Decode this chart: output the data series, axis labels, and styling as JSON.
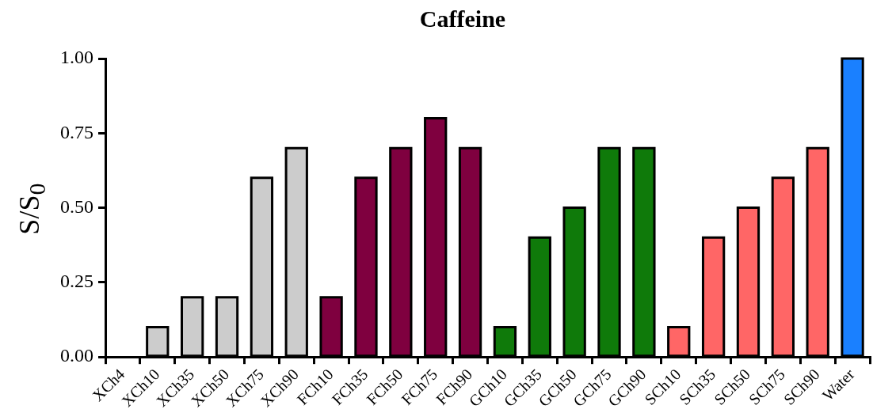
{
  "chart_data": {
    "type": "bar",
    "title": "Caffeine",
    "ylabel": "S/S$_{0}$",
    "categories": [
      "XCh4",
      "XCh10",
      "XCh35",
      "XCh50",
      "XCh75",
      "XCh90",
      "FCh10",
      "FCh35",
      "FCh50",
      "FCh75",
      "FCh90",
      "GCh10",
      "GCh35",
      "GCh50",
      "GCh75",
      "GCh90",
      "SCh10",
      "SCh35",
      "SCh50",
      "SCh75",
      "SCh90",
      "Water"
    ],
    "values": [
      0,
      0.1,
      0.2,
      0.2,
      0.6,
      0.7,
      0.2,
      0.6,
      0.7,
      0.8,
      0.7,
      0.1,
      0.4,
      0.5,
      0.7,
      0.7,
      0.1,
      0.4,
      0.5,
      0.6,
      0.7,
      1.0
    ],
    "colors": [
      "#cccccc",
      "#cccccc",
      "#cccccc",
      "#cccccc",
      "#cccccc",
      "#cccccc",
      "#7f003f",
      "#7f003f",
      "#7f003f",
      "#7f003f",
      "#7f003f",
      "#0f7a0a",
      "#0f7a0a",
      "#0f7a0a",
      "#0f7a0a",
      "#0f7a0a",
      "#ff6666",
      "#ff6666",
      "#ff6666",
      "#ff6666",
      "#ff6666",
      "#1a80ff"
    ],
    "ylim": [
      0,
      1
    ],
    "yticks": [
      {
        "value": 0,
        "label": "0.00"
      },
      {
        "value": 0.25,
        "label": "0.25"
      },
      {
        "value": 0.5,
        "label": "0.50"
      },
      {
        "value": 0.75,
        "label": "0.75"
      },
      {
        "value": 1,
        "label": "1.00"
      }
    ],
    "grid": false,
    "legend": false
  }
}
